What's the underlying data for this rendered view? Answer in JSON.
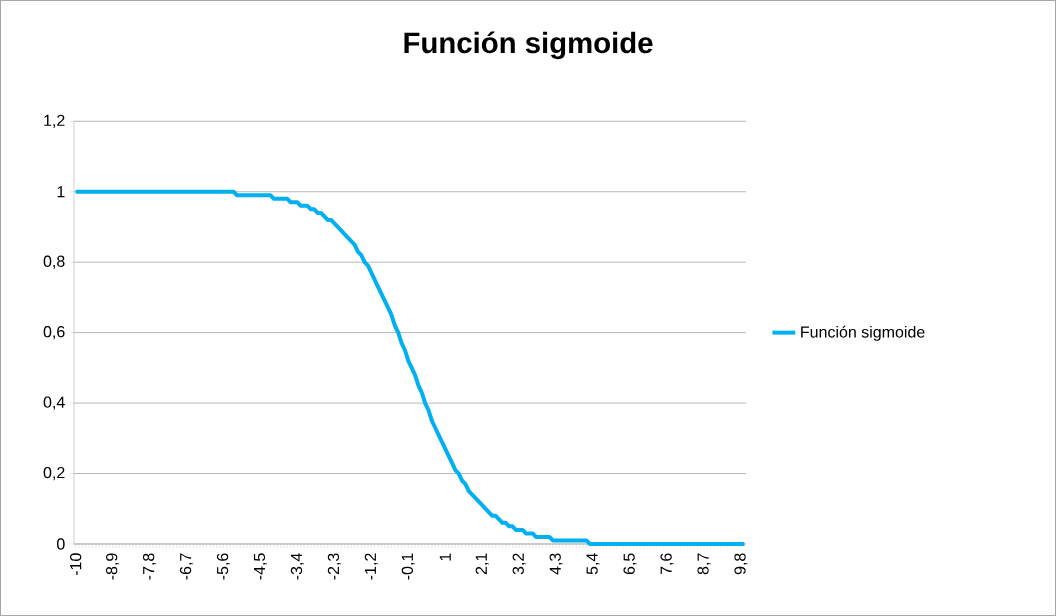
{
  "chart_data": {
    "type": "line",
    "title": "Función sigmoide",
    "categories": [
      "-10",
      null,
      null,
      null,
      null,
      null,
      null,
      null,
      null,
      null,
      null,
      "-8,9",
      null,
      null,
      null,
      null,
      null,
      null,
      null,
      null,
      null,
      null,
      "-7,8",
      null,
      null,
      null,
      null,
      null,
      null,
      null,
      null,
      null,
      null,
      "-6,7",
      null,
      null,
      null,
      null,
      null,
      null,
      null,
      null,
      null,
      null,
      "-5,6",
      null,
      null,
      null,
      null,
      null,
      null,
      null,
      null,
      null,
      null,
      "-4,5",
      null,
      null,
      null,
      null,
      null,
      null,
      null,
      null,
      null,
      null,
      "-3,4",
      null,
      null,
      null,
      null,
      null,
      null,
      null,
      null,
      null,
      null,
      "-2,3",
      null,
      null,
      null,
      null,
      null,
      null,
      null,
      null,
      null,
      null,
      "-1,2",
      null,
      null,
      null,
      null,
      null,
      null,
      null,
      null,
      null,
      null,
      "-0,1",
      null,
      null,
      null,
      null,
      null,
      null,
      null,
      null,
      null,
      null,
      "1",
      null,
      null,
      null,
      null,
      null,
      null,
      null,
      null,
      null,
      null,
      "2,1",
      null,
      null,
      null,
      null,
      null,
      null,
      null,
      null,
      null,
      null,
      "3,2",
      null,
      null,
      null,
      null,
      null,
      null,
      null,
      null,
      null,
      null,
      "4,3",
      null,
      null,
      null,
      null,
      null,
      null,
      null,
      null,
      null,
      null,
      "5,4",
      null,
      null,
      null,
      null,
      null,
      null,
      null,
      null,
      null,
      null,
      "6,5",
      null,
      null,
      null,
      null,
      null,
      null,
      null,
      null,
      null,
      null,
      "7,6",
      null,
      null,
      null,
      null,
      null,
      null,
      null,
      null,
      null,
      null,
      "8,7",
      null,
      null,
      null,
      null,
      null,
      null,
      null,
      null,
      null,
      null,
      "9,8",
      null
    ],
    "series": [
      {
        "name": "Función sigmoide",
        "color": "#00b0f0",
        "values": [
          1,
          1,
          1,
          1,
          1,
          1,
          1,
          1,
          1,
          1,
          1,
          1,
          1,
          1,
          1,
          1,
          1,
          1,
          1,
          1,
          1,
          1,
          1,
          1,
          1,
          1,
          1,
          1,
          1,
          1,
          1,
          1,
          1,
          1,
          1,
          1,
          1,
          1,
          1,
          1,
          1,
          1,
          1,
          1,
          1,
          1,
          1,
          1,
          0.99,
          0.99,
          0.99,
          0.99,
          0.99,
          0.99,
          0.99,
          0.99,
          0.99,
          0.99,
          0.99,
          0.98,
          0.98,
          0.98,
          0.98,
          0.98,
          0.97,
          0.97,
          0.97,
          0.96,
          0.96,
          0.96,
          0.95,
          0.95,
          0.94,
          0.94,
          0.93,
          0.92,
          0.92,
          0.91,
          0.9,
          0.89,
          0.88,
          0.87,
          0.86,
          0.85,
          0.83,
          0.82,
          0.8,
          0.79,
          0.77,
          0.75,
          0.73,
          0.71,
          0.69,
          0.67,
          0.65,
          0.62,
          0.6,
          0.57,
          0.55,
          0.52,
          0.5,
          0.48,
          0.45,
          0.43,
          0.4,
          0.38,
          0.35,
          0.33,
          0.31,
          0.29,
          0.27,
          0.25,
          0.23,
          0.21,
          0.2,
          0.18,
          0.17,
          0.15,
          0.14,
          0.13,
          0.12,
          0.11,
          0.1,
          0.09,
          0.08,
          0.08,
          0.07,
          0.06,
          0.06,
          0.05,
          0.05,
          0.04,
          0.04,
          0.04,
          0.03,
          0.03,
          0.03,
          0.02,
          0.02,
          0.02,
          0.02,
          0.02,
          0.01,
          0.01,
          0.01,
          0.01,
          0.01,
          0.01,
          0.01,
          0.01,
          0.01,
          0.01,
          0.01,
          0,
          0,
          0,
          0,
          0,
          0,
          0,
          0,
          0,
          0,
          0,
          0,
          0,
          0,
          0,
          0,
          0,
          0,
          0,
          0,
          0,
          0,
          0,
          0,
          0,
          0,
          0,
          0,
          0,
          0,
          0,
          0,
          0,
          0,
          0,
          0,
          0,
          0,
          0,
          0,
          0,
          0,
          0,
          0,
          0,
          0,
          0
        ]
      }
    ],
    "ylim": [
      0,
      1.2
    ],
    "yticks": [
      0,
      {
        "value": 0.2,
        "label": "0,2"
      },
      {
        "value": 0.4,
        "label": "0,4"
      },
      {
        "value": 0.6,
        "label": "0,6"
      },
      {
        "value": 0.8,
        "label": "0,8"
      },
      1,
      {
        "value": 1.2,
        "label": "1,2"
      }
    ],
    "grid": "y",
    "legend": "right",
    "marker": "none",
    "line_style": "solid"
  }
}
